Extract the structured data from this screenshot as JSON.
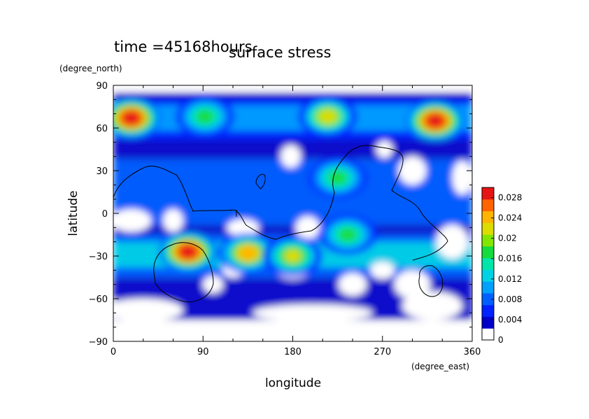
{
  "chart_data": {
    "type": "heatmap",
    "title": "surface stress",
    "time_label": "time =45168hours",
    "xlabel": "longitude",
    "ylabel": "latitude",
    "x_unit": "(degree_east)",
    "y_unit": "(degree_north)",
    "xlim": [
      0,
      360
    ],
    "ylim": [
      -90,
      90
    ],
    "x_ticks": [
      "0",
      "90",
      "180",
      "270",
      "360"
    ],
    "y_ticks": [
      "90",
      "60",
      "30",
      "0",
      "−30",
      "−60",
      "−90"
    ],
    "colorbar": {
      "range": [
        0,
        0.03
      ],
      "tick_labels": [
        "0",
        "0.004",
        "0.008",
        "0.012",
        "0.016",
        "0.02",
        "0.024",
        "0.028"
      ],
      "colors": [
        "#ffffff",
        "#0000c8",
        "#0022ff",
        "#0060ff",
        "#00a0ff",
        "#00d2e6",
        "#00e6aa",
        "#14dc3c",
        "#82e600",
        "#dcdc00",
        "#ffb400",
        "#ff6400",
        "#e61414"
      ]
    },
    "hotspots": [
      {
        "lon": 18,
        "lat": 67,
        "value": 0.03
      },
      {
        "lon": 92,
        "lat": 68,
        "value": 0.017
      },
      {
        "lon": 215,
        "lat": 68,
        "value": 0.022
      },
      {
        "lon": 323,
        "lat": 65,
        "value": 0.03
      },
      {
        "lon": 75,
        "lat": -27,
        "value": 0.03
      },
      {
        "lon": 135,
        "lat": -28,
        "value": 0.024
      },
      {
        "lon": 180,
        "lat": -30,
        "value": 0.02
      },
      {
        "lon": 225,
        "lat": 25,
        "value": 0.016
      },
      {
        "lon": 235,
        "lat": -15,
        "value": 0.016
      }
    ]
  }
}
